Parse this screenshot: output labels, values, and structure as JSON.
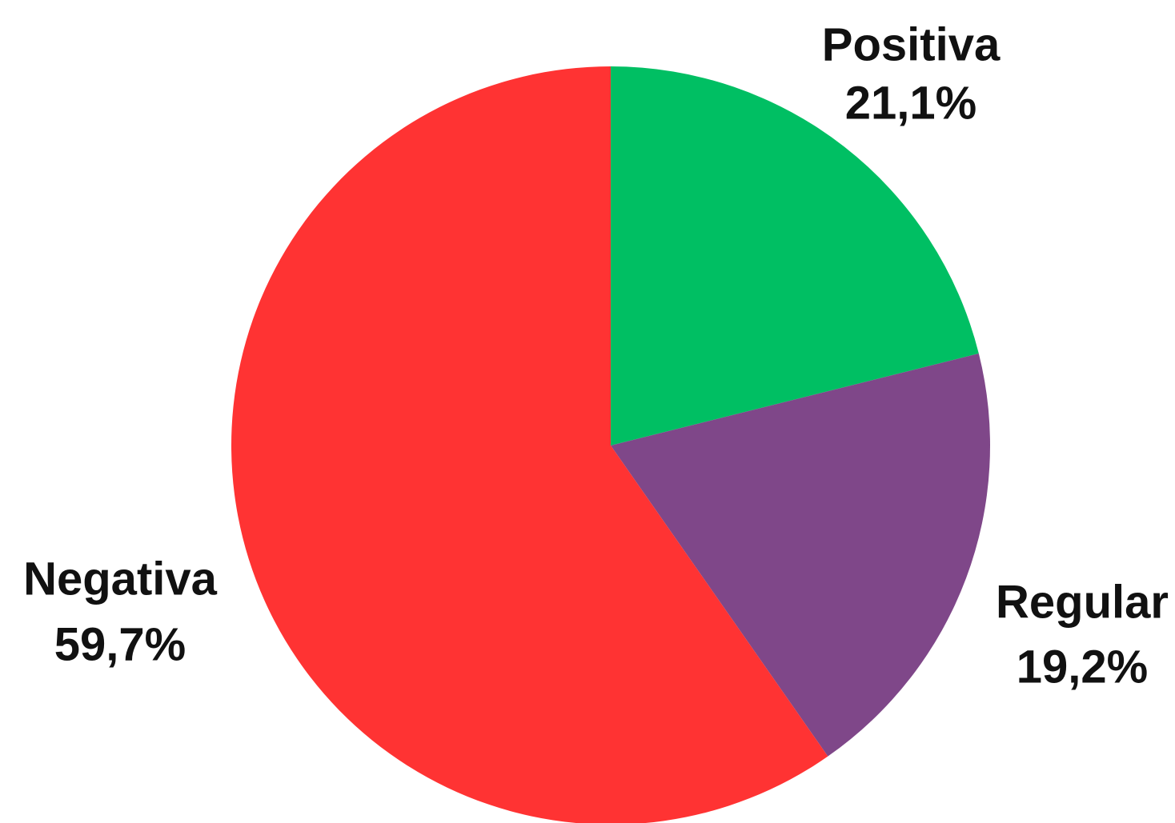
{
  "chart_data": {
    "type": "pie",
    "slices": [
      {
        "label": "Positiva",
        "value": 21.1,
        "value_text": "21,1%",
        "color": "#00BF63"
      },
      {
        "label": "Regular",
        "value": 19.2,
        "value_text": "19,2%",
        "color": "#7F4789"
      },
      {
        "label": "Negativa",
        "value": 59.7,
        "value_text": "59,7%",
        "color": "#FF3333"
      }
    ],
    "start_angle": "12 o'clock",
    "direction": "clockwise",
    "legend": "none"
  }
}
